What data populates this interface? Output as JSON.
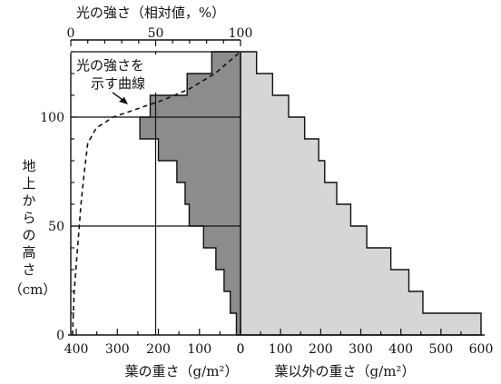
{
  "chart_data": {
    "type": "productive-structure",
    "top_axis": {
      "label": "光の強さ（相対値，%）",
      "ticks": [
        "0",
        "50",
        "100"
      ],
      "range": [
        0,
        100
      ]
    },
    "y_axis": {
      "label": "地上からの高さ（cm）",
      "ticks": [
        "0",
        "50",
        "100"
      ],
      "range": [
        0,
        130
      ]
    },
    "bottom_left_axis": {
      "label": "葉の重さ（g/m²）",
      "ticks": [
        "400",
        "300",
        "200",
        "100",
        "0"
      ],
      "range": [
        0,
        420
      ],
      "reversed": true
    },
    "bottom_right_axis": {
      "label": "葉以外の重さ（g/m²）",
      "ticks": [
        "0",
        "100",
        "200",
        "300",
        "400",
        "500",
        "600"
      ],
      "range": [
        0,
        600
      ]
    },
    "layer_height_cm": 10,
    "leaf_weight": {
      "color": "#8c8c8c",
      "layers": [
        {
          "height": 0,
          "value": 10
        },
        {
          "height": 10,
          "value": 25
        },
        {
          "height": 20,
          "value": 40
        },
        {
          "height": 30,
          "value": 60
        },
        {
          "height": 40,
          "value": 90
        },
        {
          "height": 50,
          "value": 125
        },
        {
          "height": 60,
          "value": 135
        },
        {
          "height": 70,
          "value": 155
        },
        {
          "height": 80,
          "value": 200
        },
        {
          "height": 90,
          "value": 245
        },
        {
          "height": 100,
          "value": 220
        },
        {
          "height": 110,
          "value": 130
        },
        {
          "height": 120,
          "value": 70
        }
      ]
    },
    "non_leaf_weight": {
      "color": "#d6d6d6",
      "layers": [
        {
          "height": 0,
          "value": 600
        },
        {
          "height": 10,
          "value": 455
        },
        {
          "height": 20,
          "value": 420
        },
        {
          "height": 30,
          "value": 375
        },
        {
          "height": 40,
          "value": 315
        },
        {
          "height": 50,
          "value": 275
        },
        {
          "height": 60,
          "value": 240
        },
        {
          "height": 70,
          "value": 210
        },
        {
          "height": 80,
          "value": 195
        },
        {
          "height": 90,
          "value": 160
        },
        {
          "height": 100,
          "value": 120
        },
        {
          "height": 110,
          "value": 80
        },
        {
          "height": 120,
          "value": 40
        }
      ]
    },
    "light_curve": {
      "style": "dashed",
      "points": [
        {
          "light": 1,
          "height": 0
        },
        {
          "light": 2,
          "height": 20
        },
        {
          "light": 4,
          "height": 40
        },
        {
          "light": 6,
          "height": 60
        },
        {
          "light": 8,
          "height": 75
        },
        {
          "light": 10,
          "height": 88
        },
        {
          "light": 15,
          "height": 95
        },
        {
          "light": 25,
          "height": 100
        },
        {
          "light": 40,
          "height": 104
        },
        {
          "light": 55,
          "height": 108
        },
        {
          "light": 70,
          "height": 113
        },
        {
          "light": 85,
          "height": 120
        },
        {
          "light": 97,
          "height": 128
        },
        {
          "light": 100,
          "height": 130
        }
      ]
    },
    "gridlines": {
      "heights": [
        50,
        100,
        130
      ],
      "light": [
        50
      ]
    },
    "annotation": {
      "lines": [
        "光の強さを",
        "示す曲線"
      ],
      "points_to": "light_curve"
    }
  }
}
